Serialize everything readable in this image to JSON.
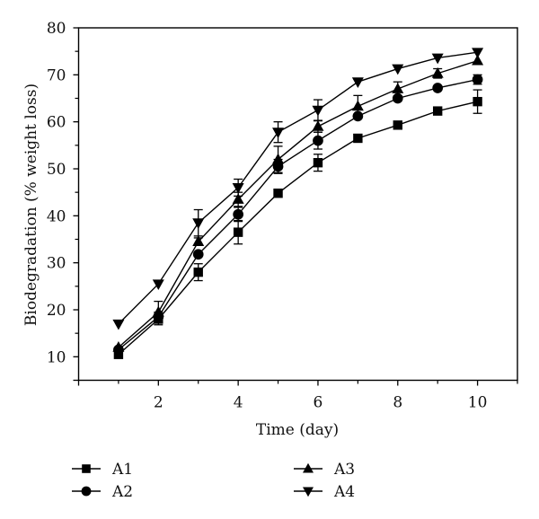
{
  "chart_data": {
    "type": "line",
    "title": "",
    "xlabel": "Time (day)",
    "ylabel": "Biodegradation (% weight loss)",
    "xlim": [
      0,
      11
    ],
    "ylim": [
      5,
      80
    ],
    "xticks": [
      2,
      4,
      6,
      8,
      10
    ],
    "xticks_minor": [
      1,
      3,
      5,
      7,
      9,
      11
    ],
    "yticks": [
      10,
      20,
      30,
      40,
      50,
      60,
      70,
      80
    ],
    "yticks_minor": [
      15,
      25,
      35,
      45,
      55,
      65,
      75
    ],
    "xtick_labels": [
      "2",
      "4",
      "6",
      "8",
      "10"
    ],
    "ytick_labels": [
      "10",
      "20",
      "30",
      "40",
      "50",
      "60",
      "70",
      "80"
    ],
    "grid": false,
    "legend_position": "bottom",
    "x": [
      1,
      2,
      3,
      4,
      5,
      6,
      7,
      8,
      9,
      10
    ],
    "series": [
      {
        "name": "A1",
        "marker": "square",
        "values": [
          10.5,
          18.0,
          28.0,
          36.5,
          44.8,
          51.3,
          56.5,
          59.3,
          62.3,
          64.3
        ],
        "errors": [
          0.5,
          1.2,
          1.8,
          2.5,
          0.4,
          1.8,
          0.8,
          0.4,
          0.4,
          2.5
        ]
      },
      {
        "name": "A2",
        "marker": "circle",
        "values": [
          11.5,
          18.5,
          31.8,
          40.3,
          50.5,
          56.0,
          61.2,
          65.0,
          67.2,
          69.0
        ],
        "errors": [
          0.5,
          1.0,
          0.5,
          1.5,
          1.5,
          1.8,
          0.5,
          0.4,
          0.5,
          1.0
        ]
      },
      {
        "name": "A3",
        "marker": "triangle-up",
        "values": [
          12.0,
          19.5,
          34.5,
          43.5,
          52.0,
          59.0,
          63.3,
          67.0,
          70.3,
          73.0
        ],
        "errors": [
          0.5,
          2.3,
          0.8,
          1.5,
          2.8,
          1.2,
          2.3,
          1.5,
          1.0,
          0.5
        ]
      },
      {
        "name": "A4",
        "marker": "triangle-down",
        "values": [
          17.0,
          25.5,
          38.5,
          46.0,
          57.8,
          62.5,
          68.5,
          71.3,
          73.6,
          74.8
        ],
        "errors": [
          0.4,
          0.4,
          2.8,
          1.8,
          2.2,
          2.2,
          0.5,
          0.4,
          0.5,
          0.5
        ]
      }
    ]
  },
  "colors": {
    "ink": "#000000",
    "background": "#ffffff"
  }
}
